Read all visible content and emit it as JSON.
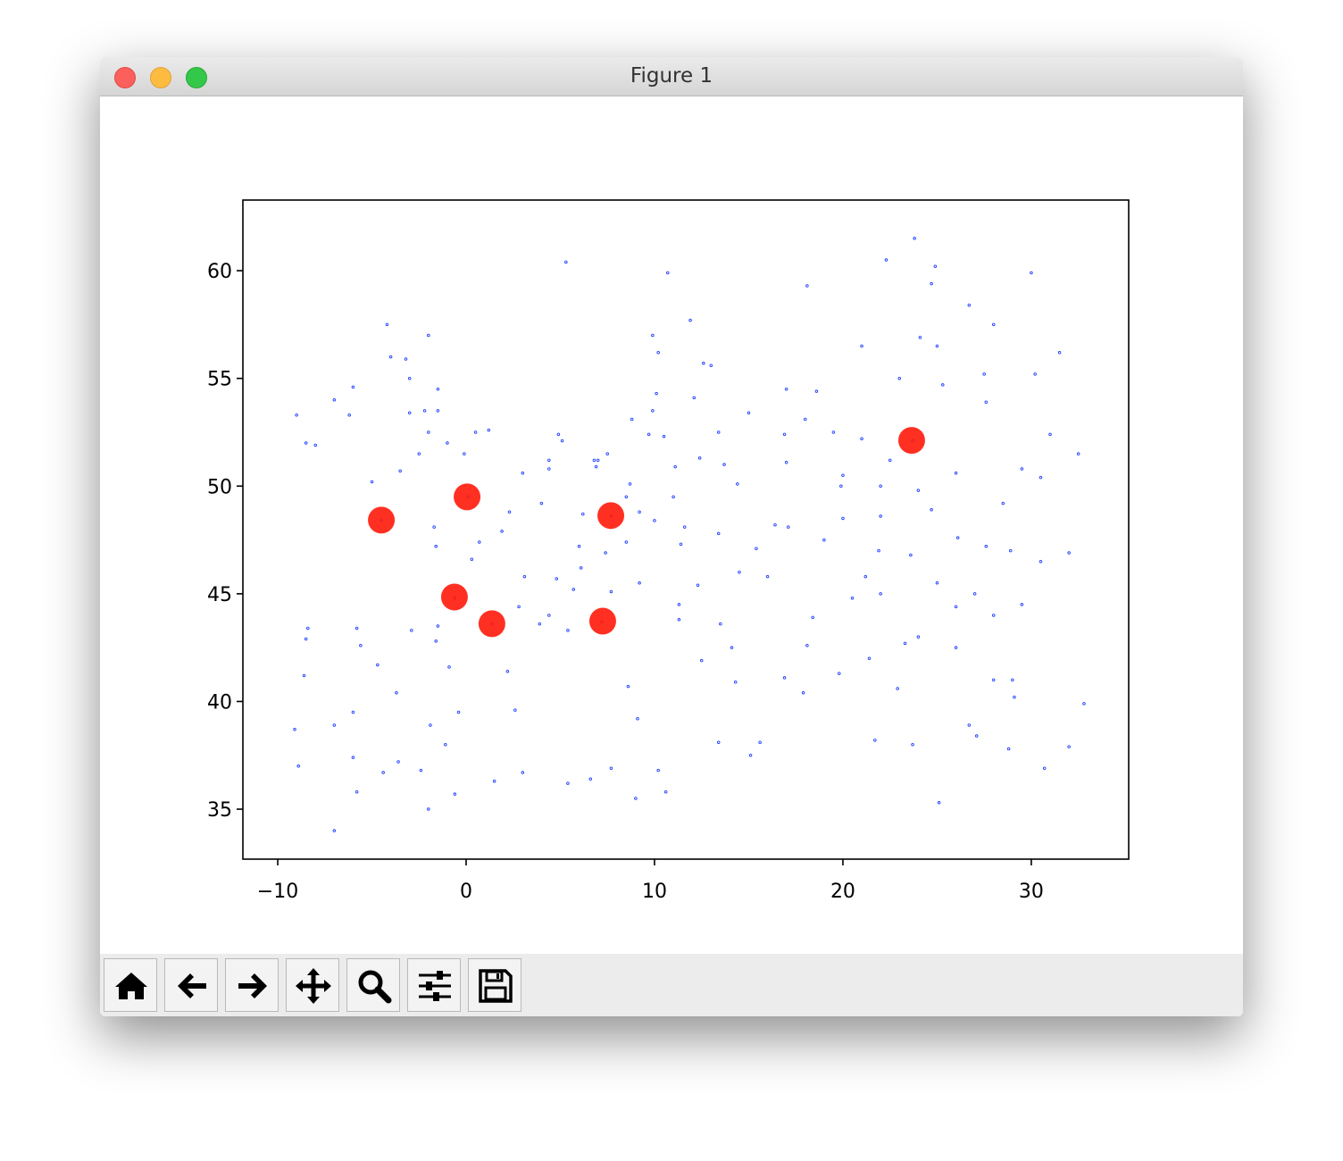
{
  "window": {
    "title": "Figure 1"
  },
  "chart_data": {
    "type": "scatter",
    "xlim": [
      -11.85,
      35.17
    ],
    "ylim": [
      32.68,
      63.28
    ],
    "xticks": [
      {
        "value": -10,
        "label": "−10"
      },
      0,
      10,
      20,
      30
    ],
    "yticks": [
      35,
      40,
      45,
      50,
      55,
      60
    ],
    "series": [
      {
        "color": "#1f3fff",
        "size": 1.3,
        "x": [
          -1.5,
          -2,
          -0.1,
          -3,
          -4,
          -2.5,
          -1,
          0.5,
          -1.5,
          -3.2,
          -4.2,
          -2,
          -6,
          -6.2,
          -8.5,
          -9,
          -7,
          -8,
          -3,
          -2.2,
          1.2,
          -5,
          -3.5,
          2.3,
          4.8,
          5.4,
          -1.6,
          -0.6,
          1.4,
          7.2,
          3,
          7.7,
          6,
          4,
          -1.7,
          0.7,
          3.1,
          5.7,
          2.8,
          -1.5,
          0.3,
          1.9,
          6.2,
          -4.5,
          0.1,
          4.4,
          3.9,
          4.9,
          4.4,
          4.4,
          5.1,
          6.9,
          7.5,
          8.7,
          9.9,
          13.4,
          11.6,
          9.2,
          12.4,
          13.7,
          8.8,
          10,
          11,
          7,
          6.8,
          8.5,
          9.7,
          10.5,
          11.1,
          14.4,
          16.4,
          17.1,
          19,
          21,
          19.9,
          17,
          18.6,
          16.9,
          15,
          12.1,
          10.1,
          12.6,
          10.2,
          9.9,
          18.1,
          11.9,
          13,
          10.7,
          5.3,
          24.9,
          22.3,
          23.8,
          24.1,
          25.3,
          27.6,
          23.7,
          30.5,
          24,
          26,
          23.3,
          21.2,
          20.5,
          18.4,
          16,
          14.5,
          15.4,
          13.4,
          11.4,
          8.5,
          7.4,
          6.1,
          7.7,
          9.2,
          11.3,
          12.3,
          11.3,
          12.5,
          14.3,
          16.9,
          15.6,
          13.4,
          15.1,
          9.1,
          8.6,
          17.9,
          14.1,
          13.5,
          18.1,
          19.8,
          21.4,
          22.9,
          23.7,
          21.7,
          25.1,
          28,
          29,
          32.8,
          27.1,
          30.7,
          28.8,
          32,
          29.1,
          26.7,
          30.5,
          28.9,
          27.6,
          32,
          26.1,
          23.6,
          21.9,
          22,
          24.7,
          28.5,
          31,
          26,
          29.5,
          32.5,
          27.5,
          30.2,
          25,
          28,
          31.5,
          26.7,
          24.7,
          30,
          21,
          23,
          22,
          20,
          22.5,
          18,
          17,
          19.5,
          20,
          22,
          25,
          27,
          28,
          24,
          26,
          29.5,
          -3.7,
          2.2,
          -0.4,
          -6,
          -4.4,
          -9.1,
          -8.6,
          -8.4,
          -5.8,
          -2.9,
          -1.6,
          -0.9,
          -4.7,
          -6,
          -2.4,
          -1.1,
          -3.6,
          -8.5,
          -7,
          -8.9,
          2.6,
          -5.6,
          -1.9,
          3,
          -0.6,
          10.2,
          7.7,
          6.6,
          -5.8,
          -7,
          -2,
          5.4,
          9,
          10.6,
          1.5
        ],
        "values": [
          53.5,
          52.5,
          51.5,
          55,
          56,
          51.5,
          52,
          52.5,
          54.5,
          55.9,
          57.5,
          57,
          54.6,
          53.3,
          52,
          53.3,
          54,
          51.9,
          53.4,
          53.5,
          52.6,
          50.2,
          50.7,
          48.8,
          45.7,
          43.3,
          47.2,
          44.8,
          43.6,
          43.7,
          50.6,
          48.6,
          47.2,
          49.2,
          48.1,
          47.4,
          45.8,
          45.2,
          44.4,
          43.5,
          46.6,
          47.9,
          48.7,
          48.4,
          49.5,
          44,
          43.6,
          52.4,
          50.8,
          51.2,
          52.1,
          50.9,
          51.5,
          50.1,
          53.5,
          52.5,
          48.1,
          48.8,
          51.3,
          51,
          53.1,
          48.4,
          49.5,
          51.2,
          51.2,
          49.5,
          52.4,
          52.3,
          50.9,
          50.1,
          48.2,
          48.1,
          47.5,
          52.2,
          50,
          51.1,
          54.4,
          52.4,
          53.4,
          54.1,
          54.3,
          55.7,
          56.2,
          57,
          59.3,
          57.7,
          55.6,
          59.9,
          60.4,
          60.2,
          60.5,
          61.5,
          56.9,
          54.7,
          53.9,
          52.1,
          50.4,
          49.8,
          44.4,
          42.7,
          45.8,
          44.8,
          43.9,
          45.8,
          46,
          47.1,
          47.8,
          47.3,
          47.4,
          46.9,
          46.2,
          45.1,
          45.5,
          44.5,
          45.4,
          43.8,
          41.9,
          40.9,
          41.1,
          38.1,
          38.1,
          37.5,
          39.2,
          40.7,
          40.4,
          42.5,
          43.6,
          42.6,
          41.3,
          42,
          40.6,
          38,
          38.2,
          35.3,
          41,
          41,
          39.9,
          38.4,
          36.9,
          37.8,
          37.9,
          40.2,
          38.9,
          46.5,
          47,
          47.2,
          46.9,
          47.6,
          46.8,
          47,
          48.6,
          48.9,
          49.2,
          52.4,
          50.6,
          50.8,
          51.5,
          55.2,
          55.2,
          56.5,
          57.5,
          56.2,
          58.4,
          59.4,
          59.9,
          56.5,
          55,
          50,
          50.5,
          51.2,
          53.1,
          54.5,
          52.5,
          48.5,
          45,
          45.5,
          45,
          44,
          43,
          42.5,
          44.5,
          40.4,
          41.4,
          39.5,
          37.4,
          36.7,
          38.7,
          41.2,
          43.4,
          43.4,
          43.3,
          42.8,
          41.6,
          41.7,
          39.5,
          36.8,
          38,
          37.2,
          42.9,
          38.9,
          37,
          39.6,
          42.6,
          38.9,
          36.7,
          35.7,
          36.8,
          36.9,
          36.4,
          35.8,
          34,
          35,
          36.2,
          35.5,
          35.8,
          36.3
        ]
      },
      {
        "color": "#ff1a0a",
        "size": 15,
        "x": [
          -4.5,
          0.05,
          7.68,
          -0.62,
          1.37,
          7.25,
          23.65
        ],
        "values": [
          48.42,
          49.5,
          48.63,
          44.85,
          43.61,
          43.73,
          52.12
        ]
      }
    ]
  }
}
